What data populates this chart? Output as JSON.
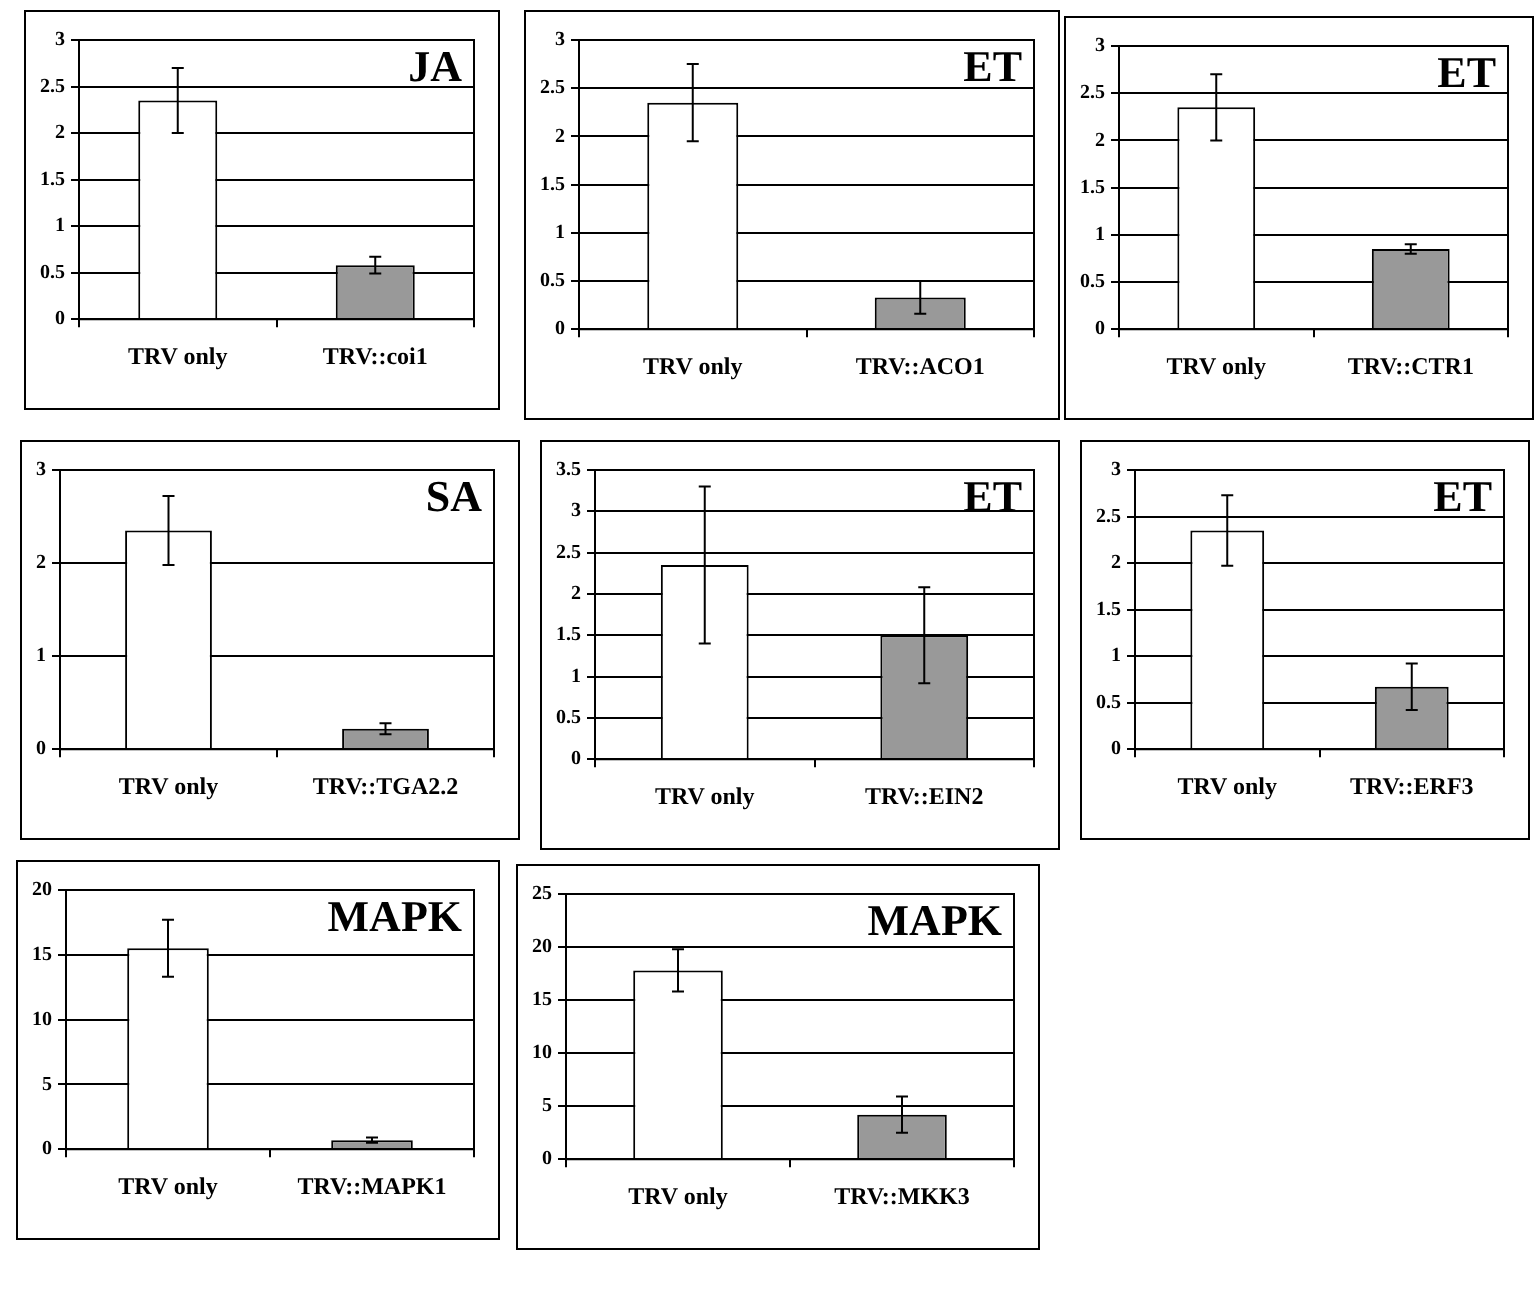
{
  "chart_data": [
    {
      "type": "bar",
      "title": "JA",
      "categories": [
        "TRV only",
        "TRV::coi1"
      ],
      "values": [
        2.35,
        0.58
      ],
      "errors": [
        0.35,
        0.09
      ],
      "colors": [
        "#ffffff",
        "#999999"
      ],
      "ylim": [
        0,
        3
      ],
      "yticks": [
        0,
        0.5,
        1,
        1.5,
        2,
        2.5,
        3
      ],
      "grid": "y"
    },
    {
      "type": "bar",
      "title": "ET",
      "categories": [
        "TRV only",
        "TRV::ACO1"
      ],
      "values": [
        2.35,
        0.33
      ],
      "errors": [
        0.4,
        0.17
      ],
      "colors": [
        "#ffffff",
        "#999999"
      ],
      "ylim": [
        0,
        3
      ],
      "yticks": [
        0,
        0.5,
        1,
        1.5,
        2,
        2.5,
        3
      ],
      "grid": "y"
    },
    {
      "type": "bar",
      "title": "ET",
      "categories": [
        "TRV only",
        "TRV::CTR1"
      ],
      "values": [
        2.35,
        0.85
      ],
      "errors": [
        0.35,
        0.05
      ],
      "colors": [
        "#ffffff",
        "#999999"
      ],
      "ylim": [
        0,
        3
      ],
      "yticks": [
        0,
        0.5,
        1,
        1.5,
        2,
        2.5,
        3
      ],
      "grid": "y"
    },
    {
      "type": "bar",
      "title": "SA",
      "categories": [
        "TRV only",
        "TRV::TGA2.2"
      ],
      "values": [
        2.35,
        0.22
      ],
      "errors": [
        0.37,
        0.06
      ],
      "colors": [
        "#ffffff",
        "#999999"
      ],
      "ylim": [
        0,
        3
      ],
      "yticks": [
        0,
        1,
        2,
        3
      ],
      "grid": "y"
    },
    {
      "type": "bar",
      "title": "ET",
      "categories": [
        "TRV only",
        "TRV::EIN2"
      ],
      "values": [
        2.35,
        1.5
      ],
      "errors": [
        0.95,
        0.58
      ],
      "colors": [
        "#ffffff",
        "#999999"
      ],
      "ylim": [
        0,
        3.5
      ],
      "yticks": [
        0,
        0.5,
        1,
        1.5,
        2,
        2.5,
        3,
        3.5
      ],
      "grid": "y"
    },
    {
      "type": "bar",
      "title": "ET",
      "categories": [
        "TRV only",
        "TRV::ERF3"
      ],
      "values": [
        2.35,
        0.67
      ],
      "errors": [
        0.38,
        0.25
      ],
      "colors": [
        "#ffffff",
        "#999999"
      ],
      "ylim": [
        0,
        3
      ],
      "yticks": [
        0,
        0.5,
        1,
        1.5,
        2,
        2.5,
        3
      ],
      "grid": "y"
    },
    {
      "type": "bar",
      "title": "MAPK",
      "categories": [
        "TRV only",
        "TRV::MAPK1"
      ],
      "values": [
        15.5,
        0.7
      ],
      "errors": [
        2.2,
        0.2
      ],
      "colors": [
        "#ffffff",
        "#999999"
      ],
      "ylim": [
        0,
        20
      ],
      "yticks": [
        0,
        5,
        10,
        15,
        20
      ],
      "grid": "y"
    },
    {
      "type": "bar",
      "title": "MAPK",
      "categories": [
        "TRV only",
        "TRV::MKK3"
      ],
      "values": [
        17.8,
        4.2
      ],
      "errors": [
        2,
        1.7
      ],
      "colors": [
        "#ffffff",
        "#999999"
      ],
      "ylim": [
        0,
        25
      ],
      "yticks": [
        0,
        5,
        10,
        15,
        20,
        25
      ],
      "grid": "y"
    }
  ]
}
